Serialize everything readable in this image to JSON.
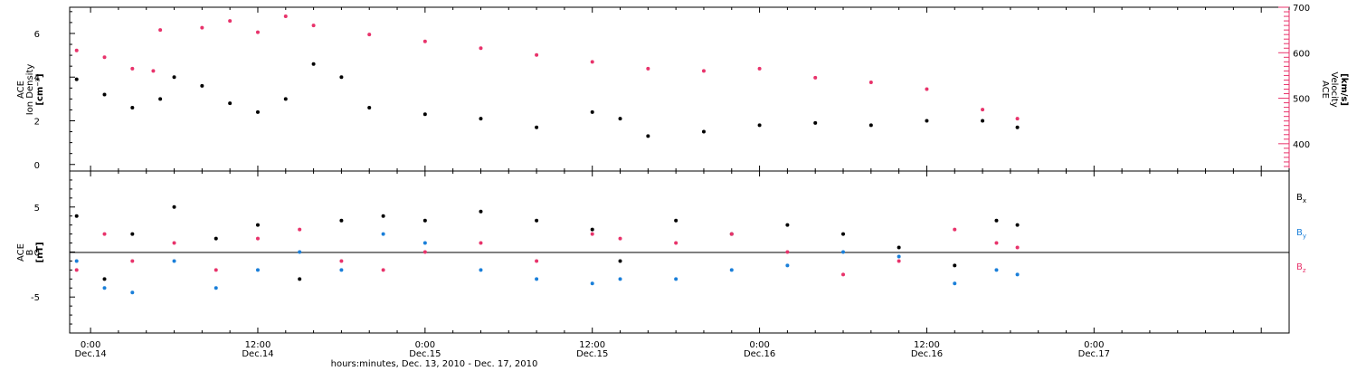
{
  "colors": {
    "black": "#000000",
    "pink": "#e8336b",
    "blue": "#1a7fd9"
  },
  "xaxis": {
    "title": "hours:minutes, Dec. 13, 2010 - Dec. 17, 2010",
    "ticks": [
      {
        "hour": 24,
        "time": "0:00",
        "date": "Dec.14"
      },
      {
        "hour": 36,
        "time": "12:00",
        "date": "Dec.14"
      },
      {
        "hour": 48,
        "time": "0:00",
        "date": "Dec.15"
      },
      {
        "hour": 60,
        "time": "12:00",
        "date": "Dec.15"
      },
      {
        "hour": 72,
        "time": "0:00",
        "date": "Dec.16"
      },
      {
        "hour": 84,
        "time": "12:00",
        "date": "Dec.16"
      },
      {
        "hour": 96,
        "time": "0:00",
        "date": "Dec.17"
      }
    ]
  },
  "panel1": {
    "left_label_1": "ACE",
    "left_label_2": "Ion Density",
    "left_unit": "[cm⁻³]",
    "right_label_1": "ACE",
    "right_label_2": "Velocity",
    "right_unit": "[km/s]",
    "left_ticks": [
      "0",
      "2",
      "4",
      "6"
    ],
    "right_ticks": [
      "400",
      "500",
      "600",
      "700"
    ]
  },
  "panel2": {
    "label_1": "ACE",
    "label_2": "B",
    "unit": "[nT]",
    "ticks": [
      "-5",
      "0",
      "5"
    ],
    "legend": [
      {
        "name": "B",
        "sub": "x",
        "color": "#000000"
      },
      {
        "name": "B",
        "sub": "y",
        "color": "#1a7fd9"
      },
      {
        "name": "B",
        "sub": "z",
        "color": "#e8336b"
      }
    ]
  },
  "chart_data": [
    {
      "type": "scatter",
      "title": "",
      "xlabel": "hours:minutes, Dec. 13, 2010 - Dec. 17, 2010",
      "xlim": [
        "2010-12-13 22:30",
        "2010-12-17 14:00"
      ],
      "ylabel": "ACE Ion Density [cm⁻³]",
      "ylim": [
        -0.3,
        7.2
      ],
      "y2label": "ACE Velocity [km/s]",
      "y2lim": [
        340,
        700
      ],
      "series": [
        {
          "name": "Ion Density",
          "axis": "left",
          "color": "#000000",
          "x": [
            "2010-12-13 23:00",
            "2010-12-14 01:00",
            "2010-12-14 03:00",
            "2010-12-14 05:00",
            "2010-12-14 06:00",
            "2010-12-14 08:00",
            "2010-12-14 10:00",
            "2010-12-14 12:00",
            "2010-12-14 14:00",
            "2010-12-14 16:00",
            "2010-12-14 18:00",
            "2010-12-14 20:00",
            "2010-12-15 00:00",
            "2010-12-15 04:00",
            "2010-12-15 08:00",
            "2010-12-15 12:00",
            "2010-12-15 14:00",
            "2010-12-15 16:00",
            "2010-12-15 20:00",
            "2010-12-16 00:00",
            "2010-12-16 04:00",
            "2010-12-16 08:00",
            "2010-12-16 12:00",
            "2010-12-16 16:00",
            "2010-12-16 18:30"
          ],
          "y": [
            3.9,
            3.2,
            2.6,
            3.0,
            4.0,
            3.6,
            2.8,
            2.4,
            3.0,
            4.6,
            4.0,
            2.6,
            2.3,
            2.1,
            1.7,
            2.4,
            2.1,
            1.3,
            1.5,
            1.8,
            1.9,
            1.8,
            2.0,
            2.0,
            1.7
          ]
        },
        {
          "name": "Velocity",
          "axis": "right",
          "color": "#e8336b",
          "x": [
            "2010-12-13 23:00",
            "2010-12-14 01:00",
            "2010-12-14 03:00",
            "2010-12-14 04:30",
            "2010-12-14 05:00",
            "2010-12-14 08:00",
            "2010-12-14 10:00",
            "2010-12-14 12:00",
            "2010-12-14 14:00",
            "2010-12-14 16:00",
            "2010-12-14 20:00",
            "2010-12-15 00:00",
            "2010-12-15 04:00",
            "2010-12-15 08:00",
            "2010-12-15 12:00",
            "2010-12-15 16:00",
            "2010-12-15 20:00",
            "2010-12-16 00:00",
            "2010-12-16 04:00",
            "2010-12-16 08:00",
            "2010-12-16 12:00",
            "2010-12-16 16:00",
            "2010-12-16 18:30"
          ],
          "y": [
            605,
            590,
            565,
            560,
            650,
            655,
            670,
            645,
            680,
            660,
            640,
            625,
            610,
            595,
            580,
            565,
            560,
            565,
            545,
            535,
            520,
            475,
            455
          ]
        }
      ]
    },
    {
      "type": "scatter",
      "title": "",
      "xlabel": "hours:minutes, Dec. 13, 2010 - Dec. 17, 2010",
      "xlim": [
        "2010-12-13 22:30",
        "2010-12-17 14:00"
      ],
      "ylabel": "ACE B [nT]",
      "ylim": [
        -9,
        9
      ],
      "series": [
        {
          "name": "Bx",
          "color": "#000000",
          "x": [
            "2010-12-13 23:00",
            "2010-12-14 01:00",
            "2010-12-14 03:00",
            "2010-12-14 06:00",
            "2010-12-14 09:00",
            "2010-12-14 12:00",
            "2010-12-14 15:00",
            "2010-12-14 18:00",
            "2010-12-14 21:00",
            "2010-12-15 00:00",
            "2010-12-15 04:00",
            "2010-12-15 08:00",
            "2010-12-15 12:00",
            "2010-12-15 14:00",
            "2010-12-15 18:00",
            "2010-12-15 22:00",
            "2010-12-16 02:00",
            "2010-12-16 06:00",
            "2010-12-16 10:00",
            "2010-12-16 14:00",
            "2010-12-16 17:00",
            "2010-12-16 18:30"
          ],
          "y": [
            4.0,
            -3.0,
            2.0,
            5.0,
            1.5,
            3.0,
            -3.0,
            3.5,
            4.0,
            3.5,
            4.5,
            3.5,
            2.5,
            -1.0,
            3.5,
            2.0,
            3.0,
            2.0,
            0.5,
            -1.5,
            3.5,
            3.0
          ]
        },
        {
          "name": "By",
          "color": "#1a7fd9",
          "x": [
            "2010-12-13 23:00",
            "2010-12-14 01:00",
            "2010-12-14 03:00",
            "2010-12-14 06:00",
            "2010-12-14 09:00",
            "2010-12-14 12:00",
            "2010-12-14 15:00",
            "2010-12-14 18:00",
            "2010-12-14 21:00",
            "2010-12-15 00:00",
            "2010-12-15 04:00",
            "2010-12-15 08:00",
            "2010-12-15 12:00",
            "2010-12-15 14:00",
            "2010-12-15 18:00",
            "2010-12-15 22:00",
            "2010-12-16 02:00",
            "2010-12-16 06:00",
            "2010-12-16 10:00",
            "2010-12-16 14:00",
            "2010-12-16 17:00",
            "2010-12-16 18:30"
          ],
          "y": [
            -1.0,
            -4.0,
            -4.5,
            -1.0,
            -4.0,
            -2.0,
            0.0,
            -2.0,
            2.0,
            1.0,
            -2.0,
            -3.0,
            -3.5,
            -3.0,
            -3.0,
            -2.0,
            -1.5,
            0.0,
            -0.5,
            -3.5,
            -2.0,
            -2.5
          ]
        },
        {
          "name": "Bz",
          "color": "#e8336b",
          "x": [
            "2010-12-13 23:00",
            "2010-12-14 01:00",
            "2010-12-14 03:00",
            "2010-12-14 06:00",
            "2010-12-14 09:00",
            "2010-12-14 12:00",
            "2010-12-14 15:00",
            "2010-12-14 18:00",
            "2010-12-14 21:00",
            "2010-12-15 00:00",
            "2010-12-15 04:00",
            "2010-12-15 08:00",
            "2010-12-15 12:00",
            "2010-12-15 14:00",
            "2010-12-15 18:00",
            "2010-12-15 22:00",
            "2010-12-16 02:00",
            "2010-12-16 06:00",
            "2010-12-16 10:00",
            "2010-12-16 14:00",
            "2010-12-16 17:00",
            "2010-12-16 18:30"
          ],
          "y": [
            -2.0,
            2.0,
            -1.0,
            1.0,
            -2.0,
            1.5,
            2.5,
            -1.0,
            -2.0,
            0.0,
            1.0,
            -1.0,
            2.0,
            1.5,
            1.0,
            2.0,
            0.0,
            -2.5,
            -1.0,
            2.5,
            1.0,
            0.5
          ]
        }
      ]
    }
  ]
}
